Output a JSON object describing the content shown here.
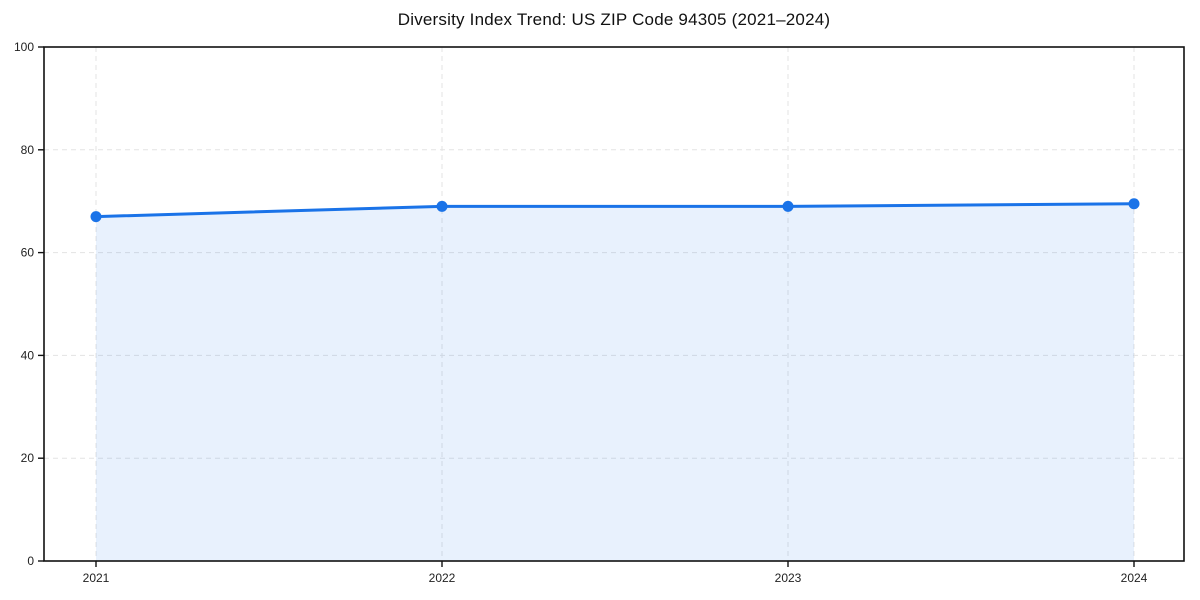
{
  "figure": {
    "background_color": "#ffffff"
  },
  "chart_data": {
    "type": "line",
    "title": "Diversity Index Trend: US ZIP Code 94305 (2021–2024)",
    "x": [
      "2021",
      "2022",
      "2023",
      "2024"
    ],
    "series": [
      {
        "name": "Diversity Index",
        "values": [
          67,
          69,
          69,
          69.5
        ]
      }
    ],
    "xlabel": "",
    "ylabel": "",
    "ylim": [
      0,
      100
    ],
    "yticks": [
      0,
      20,
      40,
      60,
      80,
      100
    ],
    "xticks": [
      "2021",
      "2022",
      "2023",
      "2024"
    ],
    "grid": true,
    "grid_style": "dashed",
    "legend": false,
    "area_fill": true,
    "markers": true,
    "colors": {
      "line": "#1a73e8",
      "marker": "#1a73e8",
      "area_fill": "rgba(26,115,232,0.10)",
      "grid": "#e3e3e3",
      "axis": "#111111",
      "tick_label": "#222222",
      "title": "#111111"
    }
  }
}
